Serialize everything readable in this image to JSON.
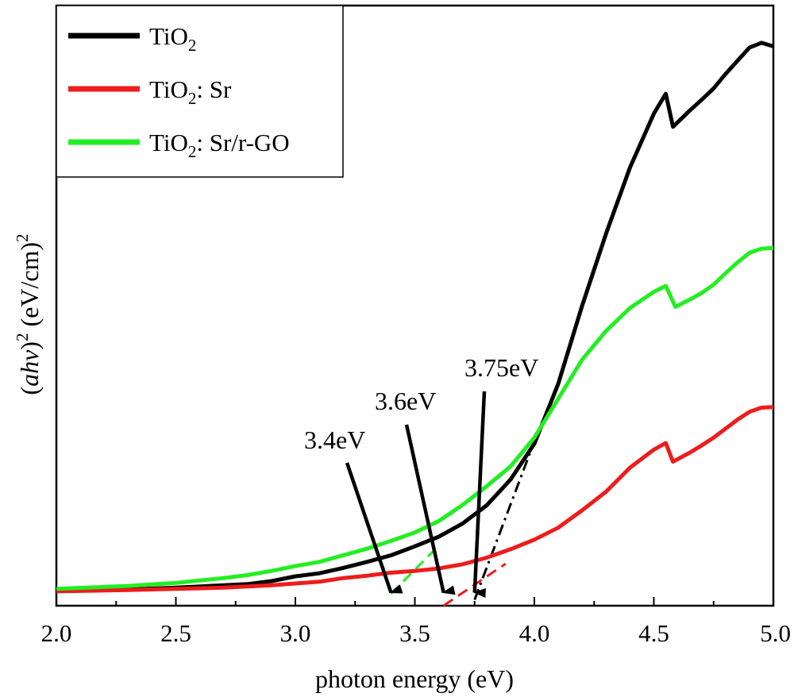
{
  "chart_data": {
    "type": "line",
    "title": "",
    "xlabel": "photon energy (eV)",
    "ylabel": {
      "prefix": "(",
      "italic": "ahv",
      "mid": ")",
      "sup": "2",
      "unit": " (eV/cm)",
      "unit_sup": "2"
    },
    "xlim": [
      2.0,
      5.0
    ],
    "ylim": [
      0,
      100
    ],
    "x_ticks": [
      "2.0",
      "2.5",
      "3.0",
      "3.5",
      "4.0",
      "4.5",
      "5.0"
    ],
    "y_ticks_shown": false,
    "legend_position": "top-left",
    "series": [
      {
        "name": "TiO2",
        "legend": {
          "base": "TiO",
          "sub": "2",
          "rest": ""
        },
        "color": "#000000",
        "points": [
          [
            2.0,
            2.5
          ],
          [
            2.3,
            2.7
          ],
          [
            2.5,
            3.0
          ],
          [
            2.7,
            3.4
          ],
          [
            2.8,
            3.6
          ],
          [
            2.9,
            4.1
          ],
          [
            3.0,
            4.9
          ],
          [
            3.1,
            5.4
          ],
          [
            3.2,
            6.3
          ],
          [
            3.3,
            7.3
          ],
          [
            3.4,
            8.4
          ],
          [
            3.5,
            9.9
          ],
          [
            3.6,
            11.5
          ],
          [
            3.7,
            13.7
          ],
          [
            3.8,
            16.7
          ],
          [
            3.9,
            21.0
          ],
          [
            4.0,
            27.0
          ],
          [
            4.1,
            37.0
          ],
          [
            4.2,
            50.0
          ],
          [
            4.3,
            62.0
          ],
          [
            4.4,
            73.0
          ],
          [
            4.5,
            82.0
          ],
          [
            4.55,
            85.3
          ],
          [
            4.58,
            79.8
          ],
          [
            4.65,
            82.5
          ],
          [
            4.7,
            84.3
          ],
          [
            4.75,
            86.2
          ],
          [
            4.8,
            88.6
          ],
          [
            4.85,
            90.8
          ],
          [
            4.9,
            93.0
          ],
          [
            4.95,
            93.8
          ],
          [
            5.0,
            93.2
          ]
        ]
      },
      {
        "name": "TiO2: Sr",
        "legend": {
          "base": "TiO",
          "sub": "2",
          "rest": ": Sr"
        },
        "color": "#ee1c1c",
        "points": [
          [
            2.0,
            2.4
          ],
          [
            2.3,
            2.6
          ],
          [
            2.5,
            2.8
          ],
          [
            2.7,
            3.0
          ],
          [
            2.9,
            3.4
          ],
          [
            3.0,
            3.7
          ],
          [
            3.1,
            4.0
          ],
          [
            3.2,
            4.6
          ],
          [
            3.3,
            5.0
          ],
          [
            3.4,
            5.5
          ],
          [
            3.5,
            5.8
          ],
          [
            3.6,
            6.2
          ],
          [
            3.7,
            6.9
          ],
          [
            3.8,
            8.0
          ],
          [
            3.9,
            9.4
          ],
          [
            4.0,
            11.0
          ],
          [
            4.1,
            13.0
          ],
          [
            4.2,
            15.9
          ],
          [
            4.3,
            19.0
          ],
          [
            4.4,
            23.0
          ],
          [
            4.5,
            26.0
          ],
          [
            4.55,
            27.1
          ],
          [
            4.58,
            24.0
          ],
          [
            4.65,
            25.5
          ],
          [
            4.7,
            26.7
          ],
          [
            4.75,
            28.0
          ],
          [
            4.8,
            29.5
          ],
          [
            4.85,
            31.0
          ],
          [
            4.9,
            32.3
          ],
          [
            4.95,
            33.0
          ],
          [
            5.0,
            33.1
          ]
        ]
      },
      {
        "name": "TiO2: Sr/r-GO",
        "legend": {
          "base": "TiO",
          "sub": "2",
          "rest": ": Sr/r-GO"
        },
        "color": "#22ee22",
        "points": [
          [
            2.0,
            2.8
          ],
          [
            2.3,
            3.3
          ],
          [
            2.5,
            3.8
          ],
          [
            2.7,
            4.6
          ],
          [
            2.8,
            5.1
          ],
          [
            2.9,
            5.8
          ],
          [
            3.0,
            6.6
          ],
          [
            3.1,
            7.3
          ],
          [
            3.2,
            8.4
          ],
          [
            3.3,
            9.5
          ],
          [
            3.4,
            10.8
          ],
          [
            3.5,
            12.2
          ],
          [
            3.6,
            14.1
          ],
          [
            3.7,
            16.8
          ],
          [
            3.8,
            19.9
          ],
          [
            3.9,
            23.2
          ],
          [
            4.0,
            28.0
          ],
          [
            4.1,
            34.5
          ],
          [
            4.2,
            41.0
          ],
          [
            4.3,
            45.8
          ],
          [
            4.4,
            49.6
          ],
          [
            4.5,
            52.3
          ],
          [
            4.55,
            53.3
          ],
          [
            4.59,
            49.8
          ],
          [
            4.65,
            51.0
          ],
          [
            4.7,
            52.1
          ],
          [
            4.75,
            53.5
          ],
          [
            4.8,
            55.4
          ],
          [
            4.85,
            57.2
          ],
          [
            4.9,
            58.8
          ],
          [
            4.95,
            59.5
          ],
          [
            5.0,
            59.6
          ]
        ]
      }
    ],
    "fit_lines": [
      {
        "color": "#22ee22",
        "style": "dash",
        "x1": 3.4,
        "y1": 2.0,
        "x2": 3.58,
        "y2": 9.2
      },
      {
        "color": "#ee1c1c",
        "style": "dash",
        "x1": 3.62,
        "y1": 0.0,
        "x2": 3.88,
        "y2": 7.0
      },
      {
        "color": "#000000",
        "style": "dashdot",
        "x1": 3.75,
        "y1": 1.0,
        "x2": 4.02,
        "y2": 29.5
      }
    ],
    "annotations": [
      {
        "text": "3.4eV",
        "x": 3.4,
        "y": 2.2
      },
      {
        "text": "3.6eV",
        "x": 3.62,
        "y": 2.2
      },
      {
        "text": "3.75eV",
        "x": 3.75,
        "y": 2.2
      }
    ]
  }
}
